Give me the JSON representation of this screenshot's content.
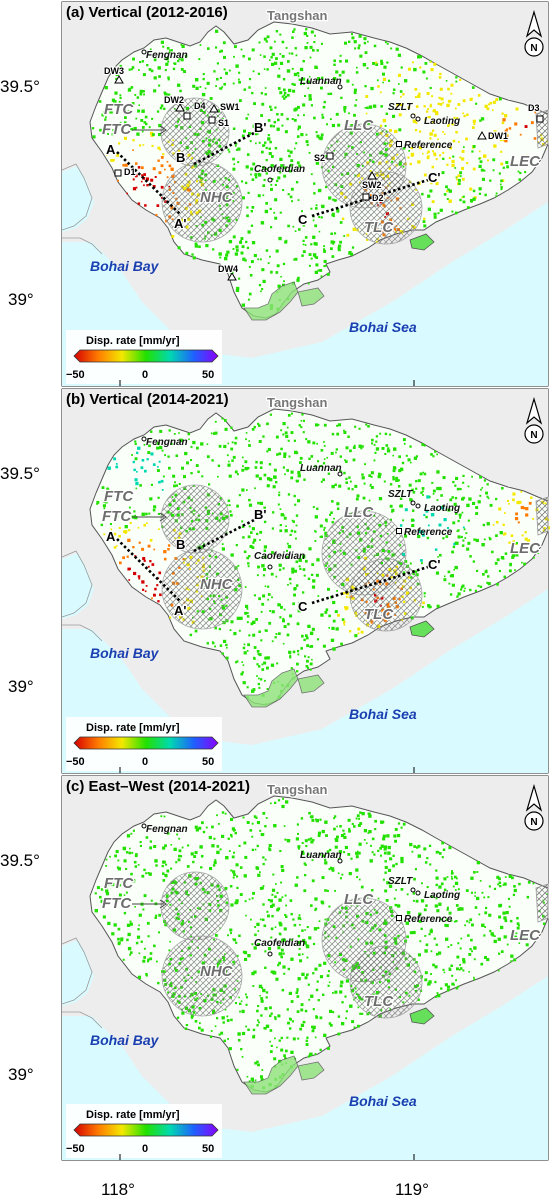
{
  "figure": {
    "y_ticks": [
      "39.5°",
      "39°"
    ],
    "x_ticks": [
      "118°",
      "119°"
    ],
    "panels": [
      {
        "id": "a",
        "title": "(a) Vertical (2012-2016)",
        "show_sites": true,
        "show_profiles": true
      },
      {
        "id": "b",
        "title": "(b) Vertical (2014-2021)",
        "show_sites": false,
        "show_profiles": true
      },
      {
        "id": "c",
        "title": "(c) East–West (2014-2021)",
        "show_sites": false,
        "show_profiles": false
      }
    ]
  },
  "map": {
    "region_label": "Tangshan",
    "sea_labels": {
      "bay": "Bohai Bay",
      "sea": "Bohai Sea"
    },
    "cities": {
      "fengnan": "Fengnan",
      "luannan": "Luannan",
      "caofeidian": "Caofeidian",
      "laoting": "Laoting",
      "szlt": "SZLT",
      "reference": "Reference"
    },
    "zones": {
      "ftc": "FTC",
      "llc": "LLC",
      "nhc": "NHC",
      "tlc": "TLC",
      "lec": "LEC"
    },
    "profiles": {
      "a_start": "A",
      "a_end": "A'",
      "b_start": "B",
      "b_end": "B'",
      "c_start": "C",
      "c_end": "C'"
    },
    "sites": {
      "dw1": "DW1",
      "dw2": "DW2",
      "dw3": "DW3",
      "dw4": "DW4",
      "d1": "D1",
      "d2": "D2",
      "d3": "D3",
      "d4": "D4",
      "s1": "S1",
      "s2": "S2",
      "sw1": "SW1",
      "sw2": "SW2"
    },
    "north_label": "N"
  },
  "colorbar": {
    "title": "Disp. rate [mm/yr]",
    "ticks": [
      "−50",
      "0",
      "50"
    ],
    "range": [
      -50,
      50
    ],
    "stops": [
      "#d40000",
      "#ff7a00",
      "#f3e800",
      "#22e000",
      "#00d9b0",
      "#1f60ff",
      "#8a00ff"
    ]
  },
  "colors": {
    "land": "#ededed",
    "sea": "#d9fbff",
    "province": "#ffffff"
  }
}
